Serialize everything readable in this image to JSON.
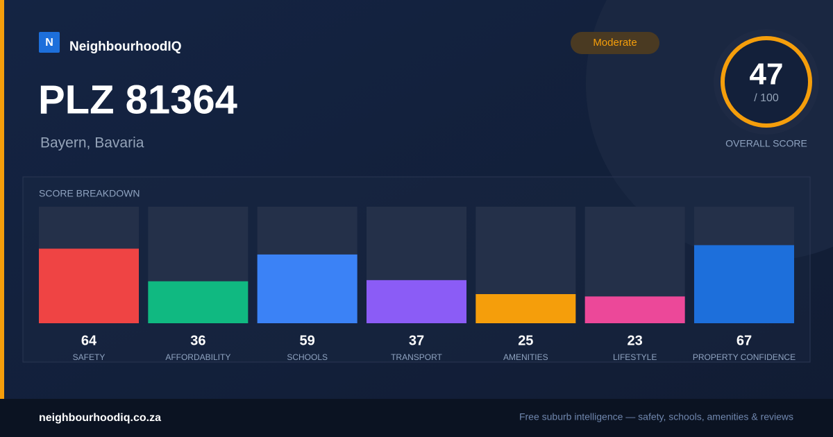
{
  "header": {
    "brand_initial": "N",
    "brand": "NeighbourhoodIQ",
    "badge": "Moderate",
    "title": "PLZ 81364",
    "subtitle": "Bayern, Bavaria"
  },
  "score": {
    "value": 47,
    "max_label": "/ 100",
    "label": "OVERALL SCORE"
  },
  "breakdown": {
    "title": "SCORE BREAKDOWN",
    "ylim": [
      0,
      100
    ],
    "items": [
      {
        "label": "SAFETY",
        "value": 64,
        "color": "#ef4444"
      },
      {
        "label": "AFFORDABILITY",
        "value": 36,
        "color": "#10b981"
      },
      {
        "label": "SCHOOLS",
        "value": 59,
        "color": "#3b82f6"
      },
      {
        "label": "TRANSPORT",
        "value": 37,
        "color": "#8b5cf6"
      },
      {
        "label": "AMENITIES",
        "value": 25,
        "color": "#f59e0b"
      },
      {
        "label": "LIFESTYLE",
        "value": 23,
        "color": "#ec4899"
      },
      {
        "label": "PROPERTY CONFIDENCE",
        "value": 67,
        "color": "#1d6fdb"
      }
    ]
  },
  "footer": {
    "site": "neighbourhoodiq.co.za",
    "tagline": "Free suburb intelligence — safety, schools, amenities & reviews"
  }
}
